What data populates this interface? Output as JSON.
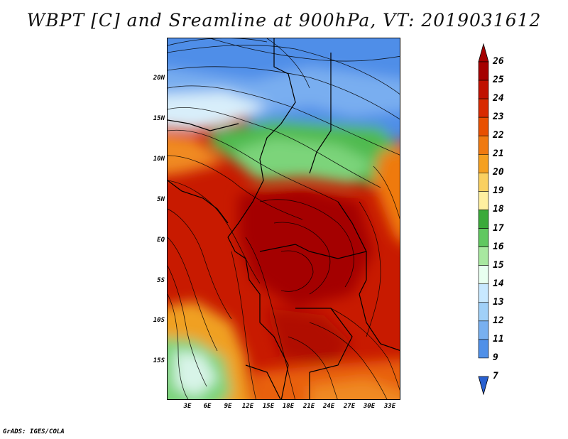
{
  "title": "WBPT [C] and Sreamline at 900hPa, VT: 2019031612",
  "credit": "GrADS: IGES/COLA",
  "lat_labels": [
    "20N",
    "15N",
    "10N",
    "5N",
    "EQ",
    "5S",
    "10S",
    "15S"
  ],
  "lon_labels": [
    "3E",
    "6E",
    "9E",
    "12E",
    "15E",
    "18E",
    "21E",
    "24E",
    "27E",
    "30E",
    "33E"
  ],
  "colorbar": {
    "labels": [
      "26",
      "25",
      "24",
      "23",
      "22",
      "21",
      "20",
      "19",
      "18",
      "17",
      "16",
      "15",
      "14",
      "13",
      "12",
      "11",
      "9",
      "7"
    ],
    "colors": [
      "#a50000",
      "#c01000",
      "#d82a00",
      "#e85000",
      "#f07a10",
      "#f5a020",
      "#fad060",
      "#fff0a0",
      "#3aaa3a",
      "#60c860",
      "#a8e8a0",
      "#e8fff0",
      "#c8e8ff",
      "#a0d0f8",
      "#78b0f0",
      "#5090e8",
      "#2860d0"
    ]
  }
}
